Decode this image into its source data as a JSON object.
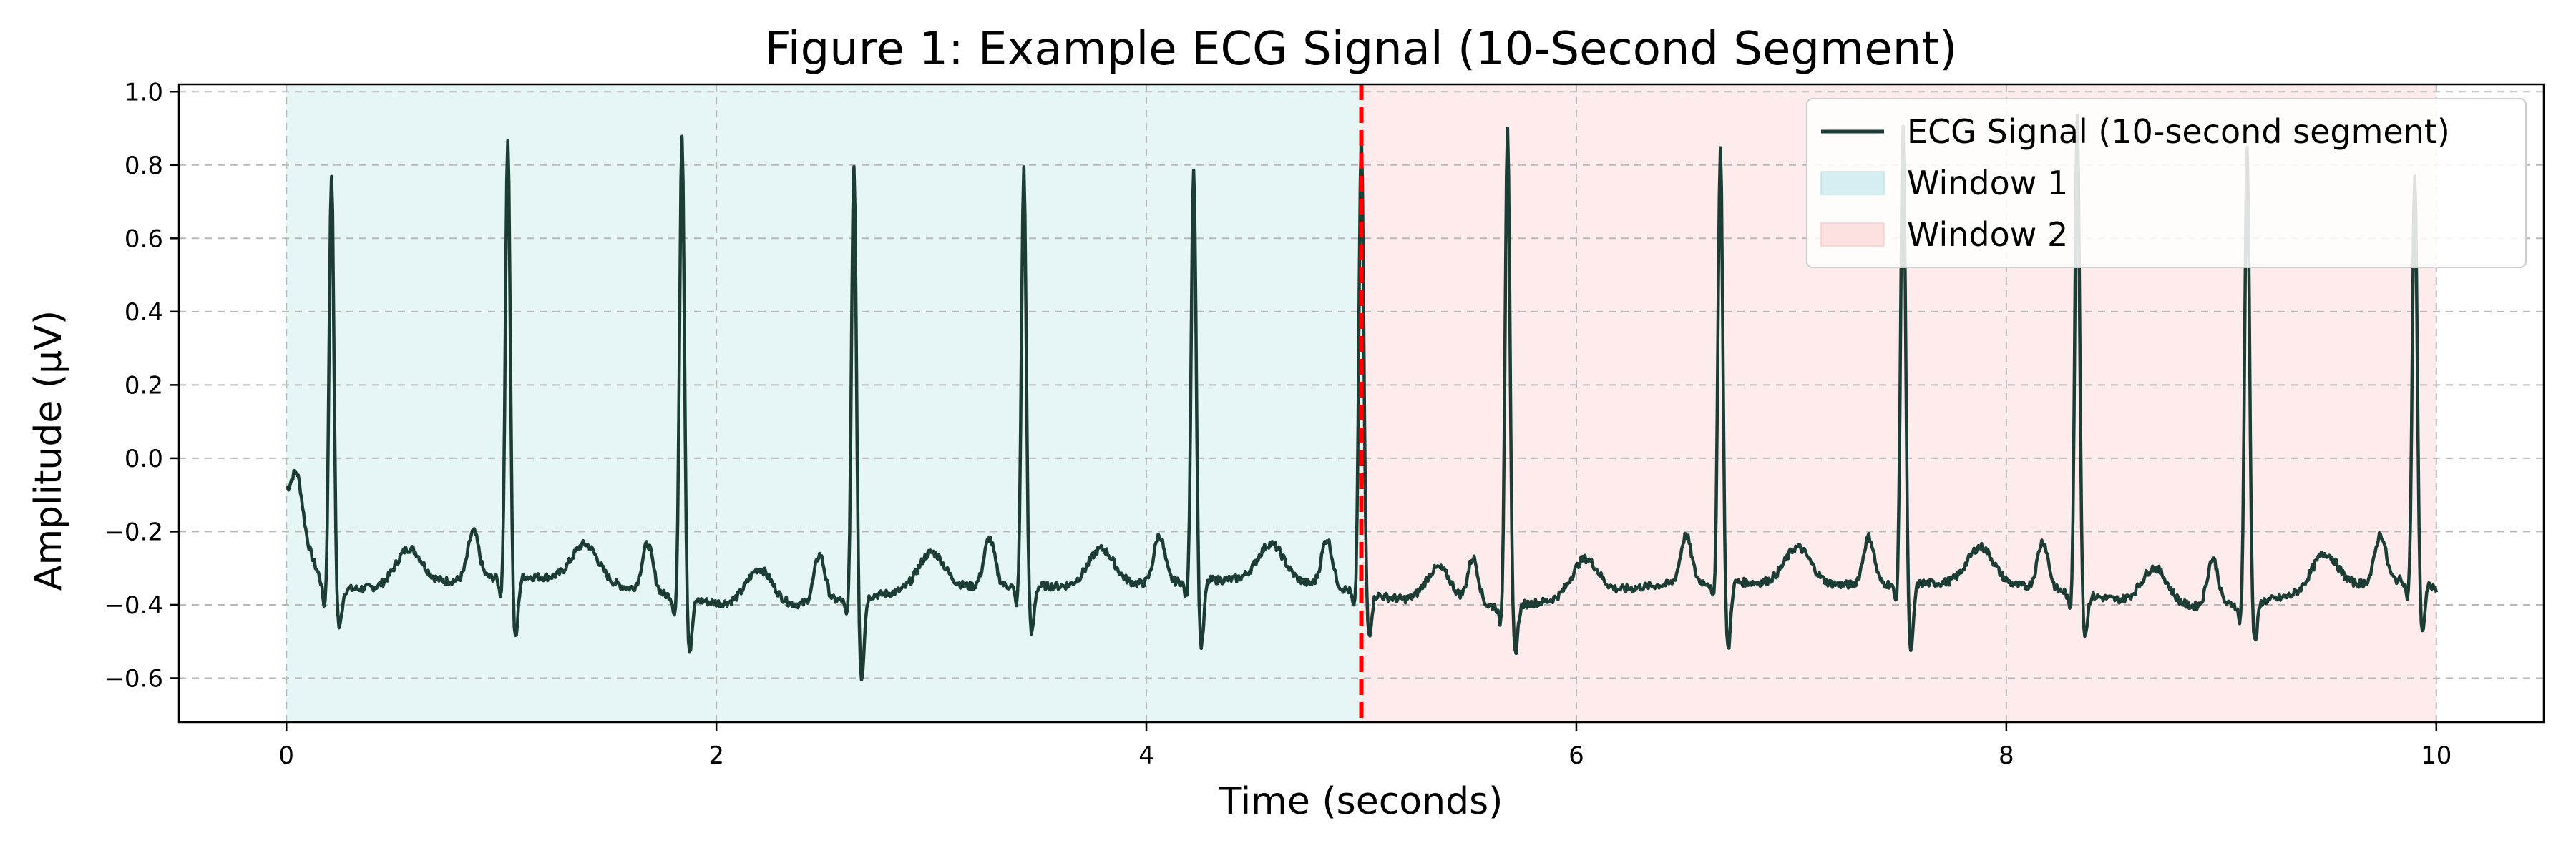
{
  "chart_data": {
    "type": "line",
    "title": "Figure 1: Example ECG Signal (10-Second Segment)",
    "xlabel": "Time (seconds)",
    "ylabel": "Amplitude (μV)",
    "xlim": [
      -0.5,
      10.5
    ],
    "ylim": [
      -0.72,
      1.02
    ],
    "x_ticks": [
      0,
      2,
      4,
      6,
      8,
      10
    ],
    "x_tick_labels": [
      "0",
      "2",
      "4",
      "6",
      "8",
      "10"
    ],
    "y_ticks": [
      -0.6,
      -0.4,
      -0.2,
      0.0,
      0.2,
      0.4,
      0.6,
      0.8,
      1.0
    ],
    "y_tick_labels": [
      "−0.6",
      "−0.4",
      "−0.2",
      "0.0",
      "0.2",
      "0.4",
      "0.6",
      "0.8",
      "1.0"
    ],
    "grid": true,
    "legend_position": "top-right",
    "legend": [
      "ECG Signal (10-second segment)",
      "Window 1",
      "Window 2"
    ],
    "series": [
      {
        "name": "ECG Signal (10-second segment)",
        "color": "#1b3d36",
        "r_peak_times": [
          0.21,
          1.03,
          1.84,
          2.64,
          3.43,
          4.22,
          5.0,
          5.68,
          6.67,
          7.52,
          8.33,
          9.12,
          9.9
        ],
        "r_peak_values": [
          0.78,
          0.88,
          0.89,
          0.8,
          0.79,
          0.8,
          0.88,
          0.91,
          0.85,
          0.9,
          0.93,
          0.85,
          0.77
        ],
        "s_wave_values": [
          -0.48,
          -0.52,
          -0.55,
          -0.63,
          -0.5,
          -0.54,
          -0.5,
          -0.55,
          -0.55,
          -0.56,
          -0.5,
          -0.52,
          -0.5
        ],
        "baseline_start": -0.1,
        "baseline_end": -0.4
      }
    ],
    "regions": [
      {
        "name": "Window 1",
        "x": [
          0,
          5
        ],
        "color": "#d5eef0"
      },
      {
        "name": "Window 2",
        "x": [
          5,
          10
        ],
        "color": "#fde0e0"
      }
    ],
    "vlines": [
      {
        "x": 5,
        "color": "#ff0000",
        "style": "dashed"
      }
    ]
  }
}
